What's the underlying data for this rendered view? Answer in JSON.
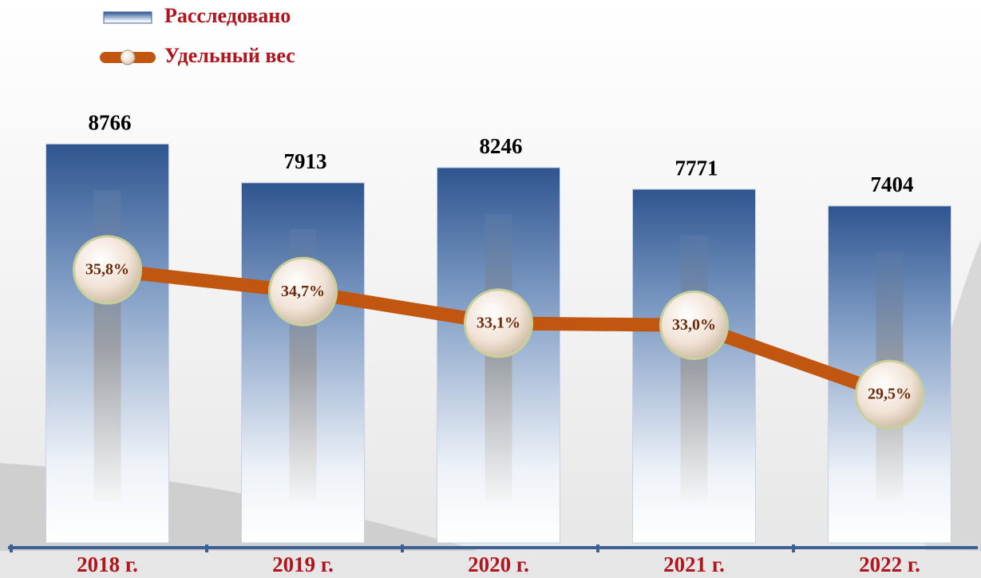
{
  "chart_data": {
    "type": "bar",
    "categories": [
      "2018 г.",
      "2019 г.",
      "2020 г.",
      "2021 г.",
      "2022 г."
    ],
    "series": [
      {
        "name": "Расследовано",
        "type": "bar",
        "color": "#3b6096",
        "values": [
          8766,
          7913,
          8246,
          7771,
          7404
        ]
      },
      {
        "name": "Удельный вес",
        "type": "line",
        "axis": "y2",
        "color": "#c0560f",
        "values": [
          35.8,
          34.7,
          33.1,
          33.0,
          29.5
        ],
        "value_labels": [
          "35,8%",
          "34,7%",
          "33,1%",
          "33,0%",
          "29,5%"
        ]
      }
    ],
    "ylim": [
      0,
      10000
    ],
    "y2lim": [
      22,
      45
    ],
    "legend": "top-left"
  }
}
